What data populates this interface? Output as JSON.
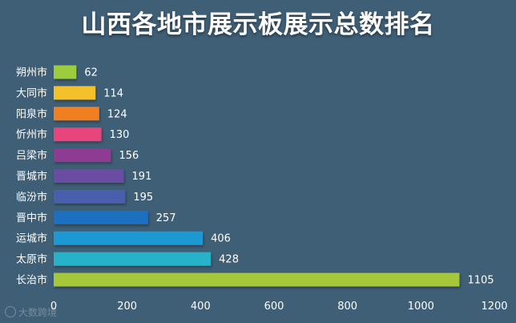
{
  "chart_data": {
    "type": "bar",
    "orientation": "horizontal",
    "title": "山西各地市展示板展示总数排名",
    "categories": [
      "朔州市",
      "大同市",
      "阳泉市",
      "忻州市",
      "吕梁市",
      "晋城市",
      "临汾市",
      "晋中市",
      "运城市",
      "太原市",
      "长治市"
    ],
    "values": [
      62,
      114,
      124,
      130,
      156,
      191,
      195,
      257,
      406,
      428,
      1105
    ],
    "bar_colors": [
      "#9ccc3c",
      "#f5c12a",
      "#f07f23",
      "#e8457b",
      "#8e3a94",
      "#6a4ea3",
      "#4a5fae",
      "#1f6fbf",
      "#1e98d3",
      "#27b3c9",
      "#a5c83a"
    ],
    "xticks": [
      "0",
      "200",
      "400",
      "600",
      "800",
      "1000",
      "1200"
    ],
    "xlim": [
      0,
      1200
    ],
    "xlabel": "",
    "ylabel": "",
    "grid": false,
    "data_labels": true
  },
  "watermark": {
    "text": "大数跨境",
    "icon": "logo-icon"
  },
  "colors": {
    "background": "#3f5f77",
    "text": "#ffffff"
  }
}
